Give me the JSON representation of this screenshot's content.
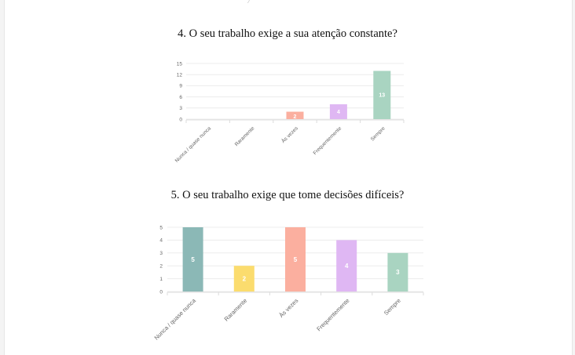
{
  "chart_data": [
    {
      "type": "bar",
      "title": "4. O seu trabalho exige a sua atenção constante?",
      "categories": [
        "Nunca / quase nunca",
        "Raramente",
        "Às vezes",
        "Frequentemente",
        "Sempre"
      ],
      "values": [
        0,
        0,
        2,
        4,
        13
      ],
      "data_labels": [
        "",
        "",
        "2",
        "4",
        "13"
      ],
      "colors": [
        "#8bb8b6",
        "#fbdc6e",
        "#fbaf9f",
        "#dfb7f3",
        "#a9d4c1"
      ],
      "xlabel": "",
      "ylabel": "",
      "ylim": [
        0,
        15
      ],
      "yticks": [
        0,
        3,
        6,
        9,
        12,
        15
      ],
      "grid": true,
      "legend": "none"
    },
    {
      "type": "bar",
      "title": "5. O seu trabalho exige que tome decisões difíceis?",
      "categories": [
        "Nunca / quase nunca",
        "Raramente",
        "Às vezes",
        "Frequentemente",
        "Sempre"
      ],
      "values": [
        5,
        2,
        5,
        4,
        3
      ],
      "data_labels": [
        "5",
        "2",
        "5",
        "4",
        "3"
      ],
      "colors": [
        "#8bb8b6",
        "#fbdc6e",
        "#fbaf9f",
        "#dfb7f3",
        "#a9d4c1"
      ],
      "xlabel": "",
      "ylabel": "",
      "ylim": [
        0,
        5
      ],
      "yticks": [
        0,
        1,
        2,
        3,
        4,
        5
      ],
      "grid": true,
      "legend": "none"
    }
  ]
}
